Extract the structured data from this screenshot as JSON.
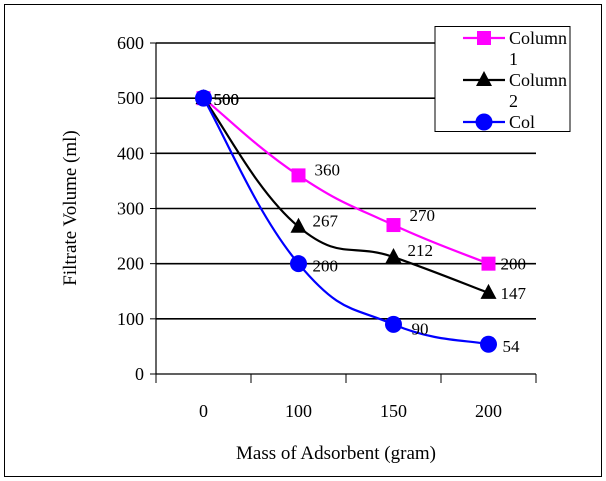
{
  "chart_data": {
    "type": "line",
    "categories": [
      "0",
      "100",
      "150",
      "200"
    ],
    "ylabel": "Filtrate Volume (ml)",
    "xlabel": "Mass of Adsorbent (gram)",
    "ylim": [
      0,
      600
    ],
    "yticks": [
      "0",
      "100",
      "200",
      "300",
      "400",
      "500",
      "600"
    ],
    "grid": true,
    "smooth": true,
    "legend_position": "top-right",
    "series": [
      {
        "name": "Column 1",
        "values": [
          500,
          360,
          270,
          200
        ],
        "labels": [
          "500",
          "360",
          "270",
          "200"
        ],
        "color": "#ff00ff",
        "marker": "square"
      },
      {
        "name": "Column 2",
        "values": [
          500,
          267,
          212,
          147
        ],
        "labels": [
          "500",
          "267",
          "212",
          "147"
        ],
        "color": "#000000",
        "marker": "triangle"
      },
      {
        "name": "Col",
        "values": [
          500,
          200,
          90,
          54
        ],
        "labels": [
          "500",
          "200",
          "90",
          "54"
        ],
        "color": "#0000ff",
        "marker": "circle"
      }
    ]
  }
}
